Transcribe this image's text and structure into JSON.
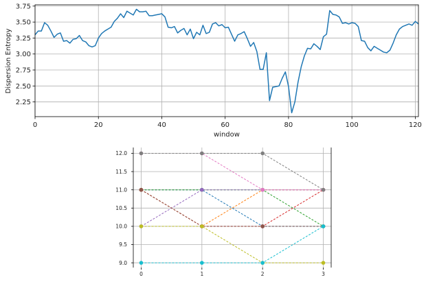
{
  "chart_data": [
    {
      "type": "line",
      "xlabel": "window",
      "ylabel": "Dispersion Entropy",
      "xlim": [
        0,
        121
      ],
      "ylim": [
        2.02,
        3.77
      ],
      "xticks": [
        "0",
        "20",
        "40",
        "60",
        "80",
        "100",
        "120"
      ],
      "yticks": [
        "2.25",
        "2.50",
        "2.75",
        "3.00",
        "3.25",
        "3.50",
        "3.75"
      ],
      "grid": true,
      "color": "#1f77b4",
      "x": [
        0,
        1,
        2,
        3,
        4,
        5,
        6,
        7,
        8,
        9,
        10,
        11,
        12,
        13,
        14,
        15,
        16,
        17,
        18,
        19,
        20,
        21,
        22,
        23,
        24,
        25,
        26,
        27,
        28,
        29,
        30,
        31,
        32,
        33,
        34,
        35,
        36,
        37,
        38,
        39,
        40,
        41,
        42,
        43,
        44,
        45,
        46,
        47,
        48,
        49,
        50,
        51,
        52,
        53,
        54,
        55,
        56,
        57,
        58,
        59,
        60,
        61,
        62,
        63,
        64,
        65,
        66,
        67,
        68,
        69,
        70,
        71,
        72,
        73,
        74,
        75,
        76,
        77,
        78,
        79,
        80,
        81,
        82,
        83,
        84,
        85,
        86,
        87,
        88,
        89,
        90,
        91,
        92,
        93,
        94,
        95,
        96,
        97,
        98,
        99,
        100,
        101,
        102,
        103,
        104,
        105,
        106,
        107,
        108,
        109,
        110,
        111,
        112,
        113,
        114,
        115,
        116,
        117,
        118,
        119,
        120,
        121
      ],
      "y": [
        3.3,
        3.36,
        3.36,
        3.49,
        3.45,
        3.36,
        3.26,
        3.31,
        3.33,
        3.2,
        3.21,
        3.17,
        3.23,
        3.24,
        3.29,
        3.21,
        3.19,
        3.13,
        3.11,
        3.13,
        3.25,
        3.32,
        3.36,
        3.39,
        3.42,
        3.51,
        3.56,
        3.63,
        3.57,
        3.67,
        3.64,
        3.61,
        3.7,
        3.66,
        3.66,
        3.67,
        3.6,
        3.6,
        3.61,
        3.62,
        3.63,
        3.58,
        3.42,
        3.41,
        3.43,
        3.33,
        3.37,
        3.4,
        3.3,
        3.39,
        3.24,
        3.34,
        3.3,
        3.45,
        3.32,
        3.34,
        3.47,
        3.49,
        3.44,
        3.46,
        3.41,
        3.42,
        3.31,
        3.2,
        3.3,
        3.32,
        3.35,
        3.24,
        3.12,
        3.18,
        3.04,
        2.76,
        2.76,
        3.02,
        2.27,
        2.48,
        2.49,
        2.5,
        2.62,
        2.72,
        2.49,
        2.08,
        2.25,
        2.56,
        2.8,
        2.97,
        3.09,
        3.08,
        3.16,
        3.12,
        3.07,
        3.27,
        3.31,
        3.68,
        3.62,
        3.61,
        3.58,
        3.48,
        3.49,
        3.47,
        3.49,
        3.48,
        3.43,
        3.21,
        3.2,
        3.1,
        3.05,
        3.12,
        3.09,
        3.06,
        3.03,
        3.02,
        3.06,
        3.17,
        3.3,
        3.39,
        3.43,
        3.45,
        3.47,
        3.45,
        3.51,
        3.47
      ]
    },
    {
      "type": "line",
      "xlim": [
        -0.13,
        3.13
      ],
      "ylim": [
        8.87,
        12.16
      ],
      "xticks": [
        "0",
        "1",
        "2",
        "3"
      ],
      "yticks": [
        "9.0",
        "9.5",
        "10.0",
        "10.5",
        "11.0",
        "11.5",
        "12.0"
      ],
      "grid": true,
      "line_style": "dashed",
      "series": [
        {
          "color": "#1f77b4",
          "values": [
            11,
            11,
            10,
            10
          ]
        },
        {
          "color": "#ff7f0e",
          "values": [
            11,
            10,
            11,
            11
          ]
        },
        {
          "color": "#2ca02c",
          "values": [
            11,
            11,
            11,
            10
          ]
        },
        {
          "color": "#d62728",
          "values": [
            11,
            10,
            10,
            11
          ]
        },
        {
          "color": "#9467bd",
          "values": [
            10,
            11,
            11,
            11
          ]
        },
        {
          "color": "#8c564b",
          "values": [
            11,
            10,
            10,
            10
          ]
        },
        {
          "color": "#e377c2",
          "values": [
            12,
            12,
            11,
            11
          ]
        },
        {
          "color": "#7f7f7f",
          "values": [
            12,
            12,
            12,
            11
          ]
        },
        {
          "color": "#bcbd22",
          "values": [
            10,
            10,
            9,
            9
          ]
        },
        {
          "color": "#17becf",
          "values": [
            9,
            9,
            9,
            10
          ]
        }
      ]
    }
  ]
}
